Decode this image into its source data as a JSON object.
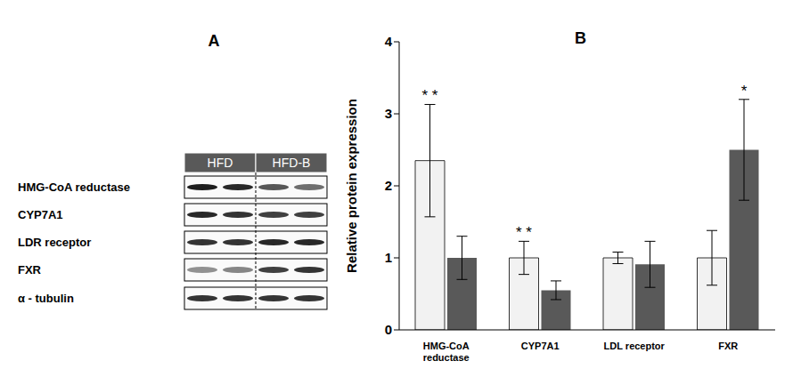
{
  "blot": {
    "panel_label": "A",
    "groups": [
      "HFD",
      "HFD-B"
    ],
    "rows": [
      "HMG-CoA reductase",
      "CYP7A1",
      "LDR receptor",
      "FXR",
      "α - tubulin"
    ]
  },
  "chart_data": {
    "type": "bar",
    "panel_label": "B",
    "y_label": "Relative protein expression",
    "categories": [
      "HMG-CoA reductase",
      "CYP7A1",
      "LDL receptor",
      "FXR"
    ],
    "series": [
      {
        "color": "#f2f2f2",
        "values": [
          2.35,
          1.0,
          1.0,
          1.0
        ],
        "errors": [
          0.78,
          0.23,
          0.08,
          0.38
        ],
        "significance": [
          "* *",
          "* *",
          null,
          null
        ]
      },
      {
        "color": "#595959",
        "values": [
          1.0,
          0.55,
          0.91,
          2.5
        ],
        "errors": [
          0.3,
          0.13,
          0.32,
          0.7
        ],
        "significance": [
          null,
          null,
          null,
          "*"
        ]
      }
    ],
    "ylim": [
      0,
      4
    ],
    "yticks": [
      0,
      1,
      2,
      3,
      4
    ],
    "grid": false,
    "legend": false
  }
}
